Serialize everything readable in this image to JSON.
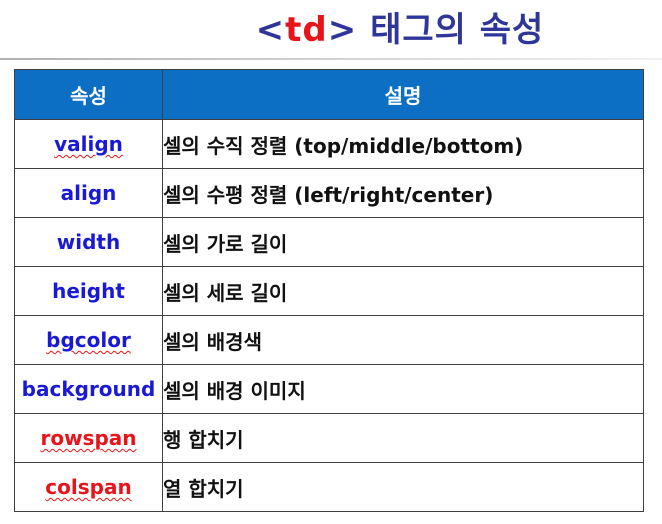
{
  "title": {
    "tag_open": "<",
    "tag_name": "td",
    "tag_close": ">",
    "rest": "태그의 속성"
  },
  "table": {
    "headers": [
      "속성",
      "설명"
    ],
    "rows": [
      {
        "attr": "valign",
        "desc": "셀의 수직 정렬 (top/middle/bottom)",
        "color": "#1a1ad6",
        "squiggle": true
      },
      {
        "attr": "align",
        "desc": "셀의 수평 정렬 (left/right/center)",
        "color": "#1a1ad6",
        "squiggle": false
      },
      {
        "attr": "width",
        "desc": "셀의 가로 길이",
        "color": "#1a1ad6",
        "squiggle": false
      },
      {
        "attr": "height",
        "desc": "셀의 세로 길이",
        "color": "#1a1ad6",
        "squiggle": false
      },
      {
        "attr": "bgcolor",
        "desc": "셀의 배경색",
        "color": "#1a1ad6",
        "squiggle": true
      },
      {
        "attr": "background",
        "desc": "셀의 배경 이미지",
        "color": "#1a1ad6",
        "squiggle": false
      },
      {
        "attr": "rowspan",
        "desc": "행 합치기",
        "color": "#e8141b",
        "squiggle": true
      },
      {
        "attr": "colspan",
        "desc": "열 합치기",
        "color": "#e8141b",
        "squiggle": true
      }
    ]
  },
  "colors": {
    "title": "#2f3699",
    "title_tag": "#e8141b",
    "header_bg": "#0d6fc3",
    "header_text": "#ffffff",
    "attr_blue": "#1a1ad6",
    "attr_red": "#e8141b"
  }
}
